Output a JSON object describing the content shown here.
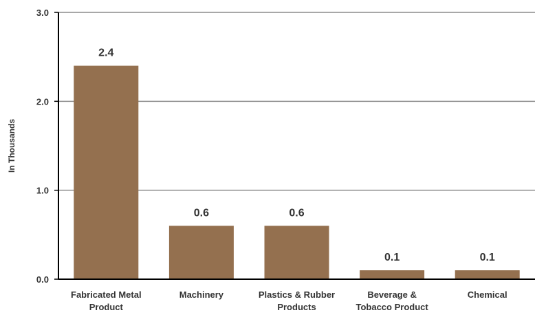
{
  "chart_data": {
    "type": "bar",
    "title": "",
    "xlabel": "",
    "ylabel": "In Thousands",
    "ylim": [
      0,
      3.0
    ],
    "yticks": [
      "0.0",
      "1.0",
      "2.0",
      "3.0"
    ],
    "ytick_values": [
      0,
      1.0,
      2.0,
      3.0
    ],
    "grid": true,
    "legend": "none",
    "categories": [
      [
        "Fabricated Metal",
        "Product"
      ],
      [
        "Machinery"
      ],
      [
        "Plastics & Rubber",
        "Products"
      ],
      [
        "Beverage &",
        "Tobacco Product"
      ],
      [
        "Chemical"
      ]
    ],
    "values": [
      2.4,
      0.6,
      0.6,
      0.1,
      0.1
    ],
    "value_labels": [
      "2.4",
      "0.6",
      "0.6",
      "0.1",
      "0.1"
    ],
    "colors": {
      "bar": "#94704f",
      "grid": "#8c8c8c",
      "axis": "#000000",
      "text": "#333333"
    }
  }
}
